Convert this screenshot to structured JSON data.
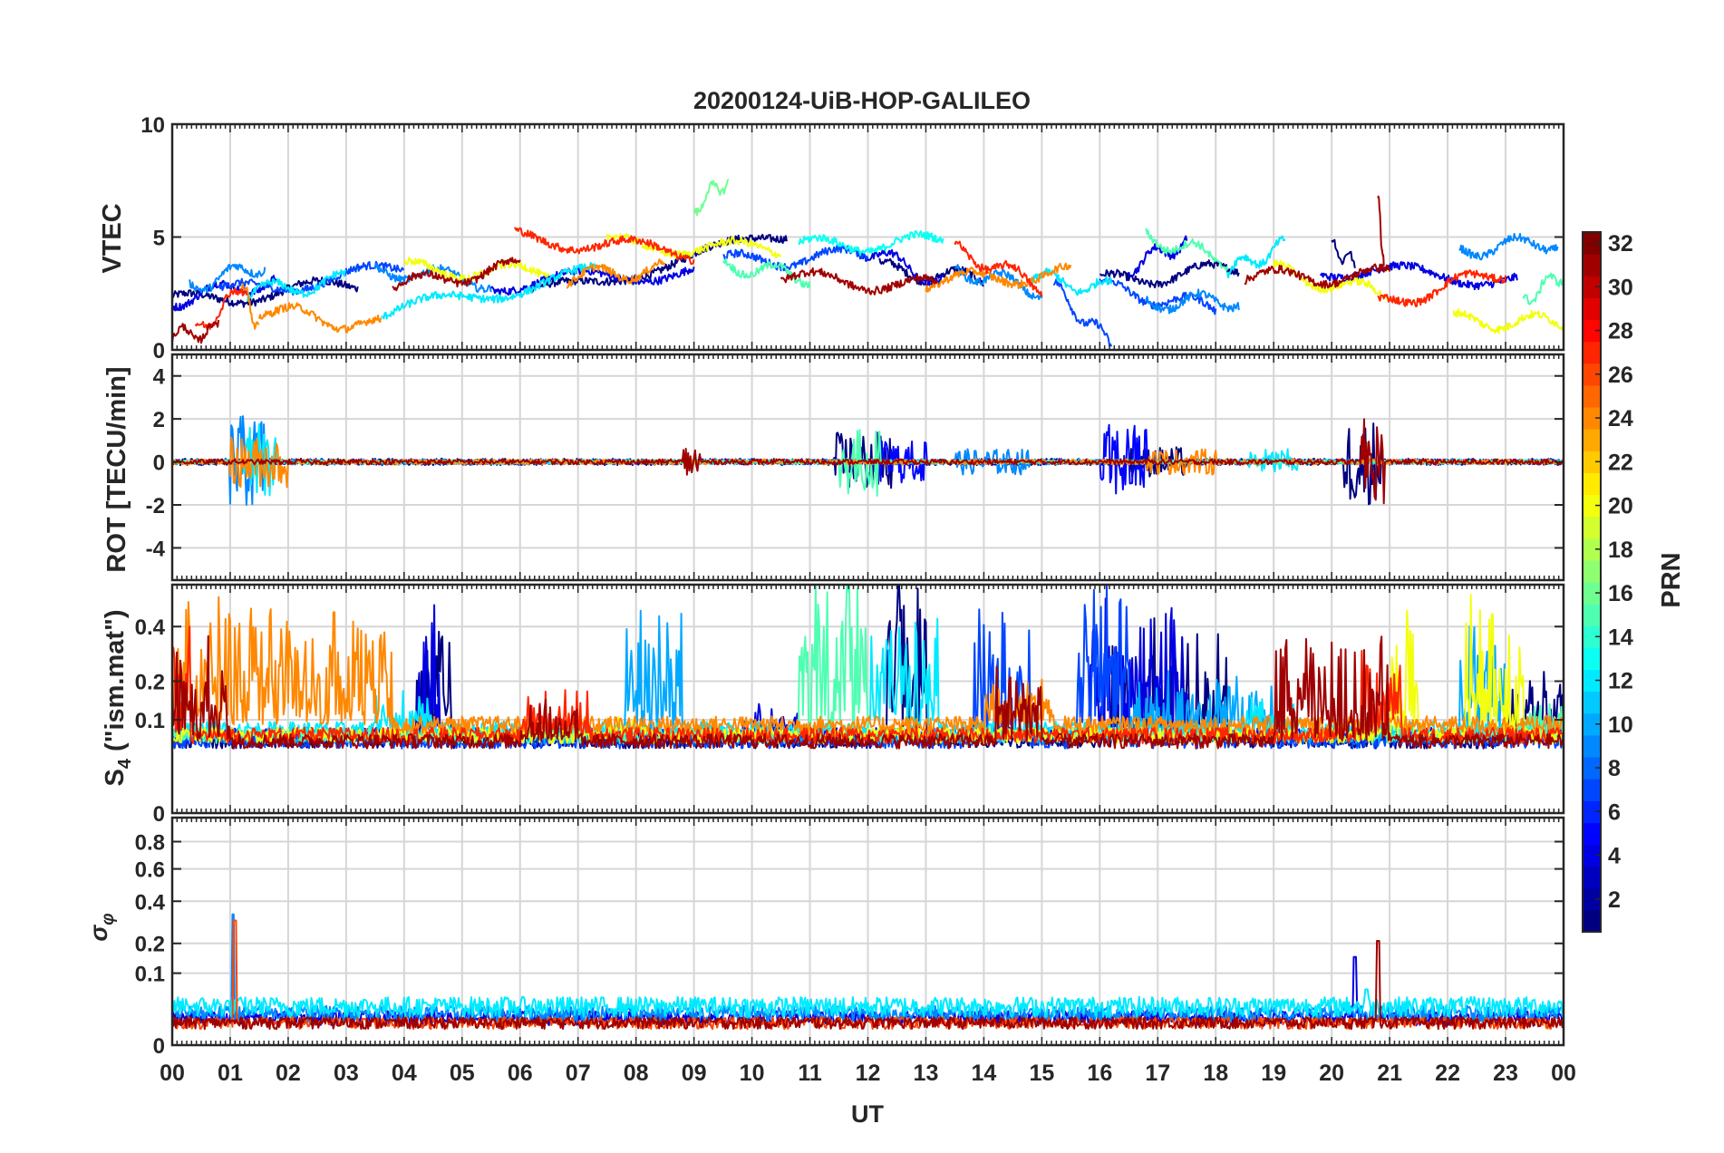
{
  "chart_data": {
    "type": "line",
    "title": "20200124-UiB-HOP-GALILEO",
    "xlabel": "UT",
    "x_tick_labels": [
      "00",
      "01",
      "02",
      "03",
      "04",
      "05",
      "06",
      "07",
      "08",
      "09",
      "10",
      "11",
      "12",
      "13",
      "14",
      "15",
      "16",
      "17",
      "18",
      "19",
      "20",
      "21",
      "22",
      "23",
      "00"
    ],
    "xlim": [
      0,
      24
    ],
    "grid": true,
    "colorbar": {
      "label": "PRN",
      "range": [
        1,
        32
      ],
      "colormap": "jet",
      "tick_labels": [
        "2",
        "4",
        "6",
        "8",
        "10",
        "12",
        "14",
        "16",
        "18",
        "20",
        "22",
        "24",
        "26",
        "28",
        "30",
        "32"
      ]
    },
    "panels": [
      {
        "id": "vtec",
        "ylabel": "VTEC",
        "ylim": [
          0,
          10
        ],
        "y_ticks": [
          0,
          5,
          10
        ],
        "y_tick_labels": [
          "0",
          "5",
          "10"
        ],
        "description_level": "values mostly 2-5 TECU, peaks near 7.6 at 09:30 and 6.9 at 20:50",
        "series": [
          {
            "prn": 1,
            "segments": [
              [
                0.0,
                2.1,
                3.2,
                2.9
              ],
              [
                6.2,
                2.4,
                10.6,
                5.1
              ],
              [
                12.2,
                3.6,
                14.0,
                3.1
              ],
              [
                16.0,
                3.0,
                18.4,
                3.6
              ],
              [
                20.0,
                4.6,
                20.4,
                3.8
              ]
            ]
          },
          {
            "prn": 4,
            "segments": [
              [
                0.0,
                2.2,
                1.8,
                3.1
              ],
              [
                5.5,
                2.9,
                9.0,
                3.5
              ],
              [
                11.8,
                4.6,
                13.3,
                3.0
              ],
              [
                16.5,
                3.7,
                17.5,
                4.8
              ],
              [
                19.8,
                3.6,
                23.2,
                3.1
              ]
            ]
          },
          {
            "prn": 7,
            "segments": [
              [
                0.8,
                2.5,
                4.0,
                3.6
              ],
              [
                9.5,
                3.9,
                12.0,
                4.2
              ],
              [
                15.2,
                2.8,
                16.2,
                0.2
              ],
              [
                16.0,
                2.8,
                18.0,
                1.8
              ]
            ]
          },
          {
            "prn": 9,
            "segments": [
              [
                0.3,
                2.8,
                1.6,
                3.8
              ],
              [
                3.5,
                3.6,
                5.5,
                3.0
              ],
              [
                13.5,
                3.6,
                15.0,
                2.6
              ],
              [
                16.8,
                2.1,
                18.4,
                2.2
              ],
              [
                22.2,
                4.4,
                23.9,
                4.8
              ]
            ]
          },
          {
            "prn": 12,
            "segments": [
              [
                1.3,
                2.5,
                3.0,
                3.1
              ],
              [
                3.6,
                1.6,
                7.3,
                3.4
              ],
              [
                14.8,
                3.2,
                16.2,
                2.7
              ],
              [
                18.2,
                3.5,
                19.2,
                4.6
              ]
            ]
          },
          {
            "prn": 13,
            "segments": [
              [
                10.8,
                4.6,
                13.3,
                4.8
              ]
            ]
          },
          {
            "prn": 15,
            "segments": [
              [
                9.5,
                3.8,
                11.0,
                3.2
              ],
              [
                16.8,
                5.0,
                18.2,
                4.0
              ],
              [
                23.3,
                2.2,
                24.0,
                3.4
              ]
            ]
          },
          {
            "prn": 16,
            "segments": [
              [
                9.0,
                6.3,
                9.6,
                7.6
              ]
            ]
          },
          {
            "prn": 20,
            "segments": [
              [
                4.0,
                3.6,
                6.5,
                3.4
              ],
              [
                7.5,
                4.7,
                10.5,
                4.4
              ],
              [
                19.0,
                3.5,
                21.0,
                2.4
              ],
              [
                22.1,
                1.3,
                24.0,
                1.2
              ]
            ]
          },
          {
            "prn": 24,
            "segments": [
              [
                1.2,
                3.1,
                1.5,
                0.6
              ],
              [
                1.5,
                1.8,
                3.6,
                1.0
              ],
              [
                6.8,
                3.2,
                8.5,
                3.6
              ],
              [
                13.0,
                3.0,
                15.5,
                3.4
              ]
            ]
          },
          {
            "prn": 27,
            "segments": [
              [
                0.4,
                0.8,
                1.3,
                2.9
              ],
              [
                5.9,
                5.0,
                9.0,
                4.3
              ],
              [
                13.5,
                4.5,
                15.0,
                2.8
              ],
              [
                20.8,
                2.0,
                23.0,
                3.5
              ]
            ]
          },
          {
            "prn": 31,
            "segments": [
              [
                0.0,
                0.6,
                0.8,
                0.9
              ],
              [
                3.8,
                2.8,
                6.0,
                3.7
              ],
              [
                10.5,
                3.2,
                13.2,
                2.8
              ],
              [
                18.5,
                3.2,
                21.0,
                3.3
              ],
              [
                20.8,
                6.9,
                20.9,
                3.4
              ]
            ]
          }
        ]
      },
      {
        "id": "rot",
        "ylabel": "ROT [TECU/min]",
        "ylim": [
          -5.5,
          5
        ],
        "y_ticks": [
          -4,
          -2,
          0,
          2,
          4
        ],
        "y_tick_labels": [
          "-4",
          "-2",
          "0",
          "2",
          "4"
        ],
        "series": [
          {
            "prn": 1,
            "noise": 0.15,
            "bursts": [
              [
                11.4,
                12.4,
                1.4
              ],
              [
                20.2,
                20.9,
                2.0
              ],
              [
                16.5,
                17.5,
                0.7
              ]
            ]
          },
          {
            "prn": 5,
            "noise": 0.12,
            "bursts": [
              [
                16.0,
                16.8,
                1.8
              ],
              [
                12.2,
                13.0,
                1.0
              ]
            ]
          },
          {
            "prn": 9,
            "noise": 0.12,
            "bursts": [
              [
                1.0,
                1.6,
                2.2
              ],
              [
                13.5,
                14.8,
                0.6
              ]
            ]
          },
          {
            "prn": 12,
            "noise": 0.1,
            "bursts": [
              [
                1.2,
                1.8,
                1.8
              ],
              [
                18.5,
                19.4,
                0.6
              ]
            ]
          },
          {
            "prn": 15,
            "noise": 0.1,
            "bursts": [
              [
                11.5,
                12.2,
                1.6
              ]
            ]
          },
          {
            "prn": 24,
            "noise": 0.12,
            "bursts": [
              [
                1.0,
                2.0,
                1.2
              ],
              [
                16.8,
                18.0,
                0.6
              ]
            ]
          },
          {
            "prn": 31,
            "noise": 0.12,
            "bursts": [
              [
                20.5,
                20.9,
                2.0
              ],
              [
                8.8,
                9.1,
                0.8
              ]
            ]
          }
        ]
      },
      {
        "id": "s4",
        "ylabel": "S4 (\"ism.mat\")",
        "ylabel_main": "S",
        "ylabel_sub": "4",
        "ylabel_rest": " (\"ism.mat\")",
        "ylim": [
          0,
          0.6
        ],
        "y_ticks": [
          0,
          0.1,
          0.2,
          0.4
        ],
        "y_tick_labels": [
          "0",
          "0.1",
          "0.2",
          "0.4"
        ],
        "y_scale": "sqrt",
        "series": [
          {
            "prn": 1,
            "base": 0.06,
            "bursts": [
              [
                12.3,
                13.0,
                0.58
              ],
              [
                16.2,
                18.2,
                0.35
              ],
              [
                4.2,
                4.8,
                0.3
              ],
              [
                23.0,
                24.0,
                0.2
              ]
            ]
          },
          {
            "prn": 4,
            "base": 0.07,
            "bursts": [
              [
                15.8,
                17.5,
                0.45
              ],
              [
                4.2,
                4.6,
                0.5
              ],
              [
                9.8,
                10.8,
                0.12
              ]
            ]
          },
          {
            "prn": 7,
            "base": 0.06,
            "bursts": [
              [
                15.6,
                16.5,
                0.55
              ],
              [
                13.8,
                14.8,
                0.38
              ]
            ]
          },
          {
            "prn": 10,
            "base": 0.07,
            "bursts": [
              [
                7.8,
                8.8,
                0.42
              ],
              [
                22.2,
                23.0,
                0.35
              ],
              [
                16.5,
                19.0,
                0.2
              ]
            ]
          },
          {
            "prn": 12,
            "base": 0.08,
            "bursts": [
              [
                12.0,
                13.2,
                0.4
              ],
              [
                3.5,
                4.5,
                0.16
              ],
              [
                18.5,
                19.5,
                0.14
              ]
            ]
          },
          {
            "prn": 15,
            "base": 0.07,
            "bursts": [
              [
                10.8,
                12.0,
                0.6
              ],
              [
                23.0,
                24.0,
                0.12
              ]
            ]
          },
          {
            "prn": 20,
            "base": 0.07,
            "bursts": [
              [
                21.0,
                21.5,
                0.44
              ],
              [
                22.3,
                23.3,
                0.48
              ],
              [
                7.5,
                8.2,
                0.1
              ]
            ]
          },
          {
            "prn": 24,
            "base": 0.09,
            "bursts": [
              [
                0.0,
                3.8,
                0.43
              ],
              [
                14.0,
                15.2,
                0.2
              ]
            ]
          },
          {
            "prn": 27,
            "base": 0.07,
            "bursts": [
              [
                20.5,
                21.2,
                0.28
              ],
              [
                6.0,
                7.2,
                0.16
              ],
              [
                0.0,
                0.3,
                0.35
              ]
            ]
          },
          {
            "prn": 31,
            "base": 0.06,
            "bursts": [
              [
                0.0,
                1.0,
                0.28
              ],
              [
                14.2,
                15.0,
                0.22
              ],
              [
                19.0,
                21.0,
                0.3
              ],
              [
                6.0,
                7.0,
                0.14
              ]
            ]
          }
        ]
      },
      {
        "id": "sigma_phi",
        "ylabel": "σφ",
        "ylabel_main": "σ",
        "ylabel_sub": "φ",
        "ylim": [
          0,
          1
        ],
        "y_ticks": [
          0,
          0.1,
          0.2,
          0.4,
          0.6,
          0.8
        ],
        "y_tick_labels": [
          "0",
          "0.1",
          "0.2",
          "0.4",
          "0.6",
          "0.8"
        ],
        "y_scale": "sqrt",
        "series": [
          {
            "prn": 4,
            "base": 0.015,
            "spikes": [
              [
                20.4,
                0.15
              ]
            ]
          },
          {
            "prn": 9,
            "base": 0.02,
            "spikes": [
              [
                1.05,
                0.33
              ]
            ]
          },
          {
            "prn": 12,
            "base": 0.03,
            "spikes": [
              [
                20.6,
                0.06
              ]
            ]
          },
          {
            "prn": 26,
            "base": 0.01,
            "spikes": [
              [
                1.08,
                0.3
              ]
            ]
          },
          {
            "prn": 31,
            "base": 0.01,
            "spikes": [
              [
                20.8,
                0.21
              ]
            ]
          }
        ]
      }
    ]
  }
}
